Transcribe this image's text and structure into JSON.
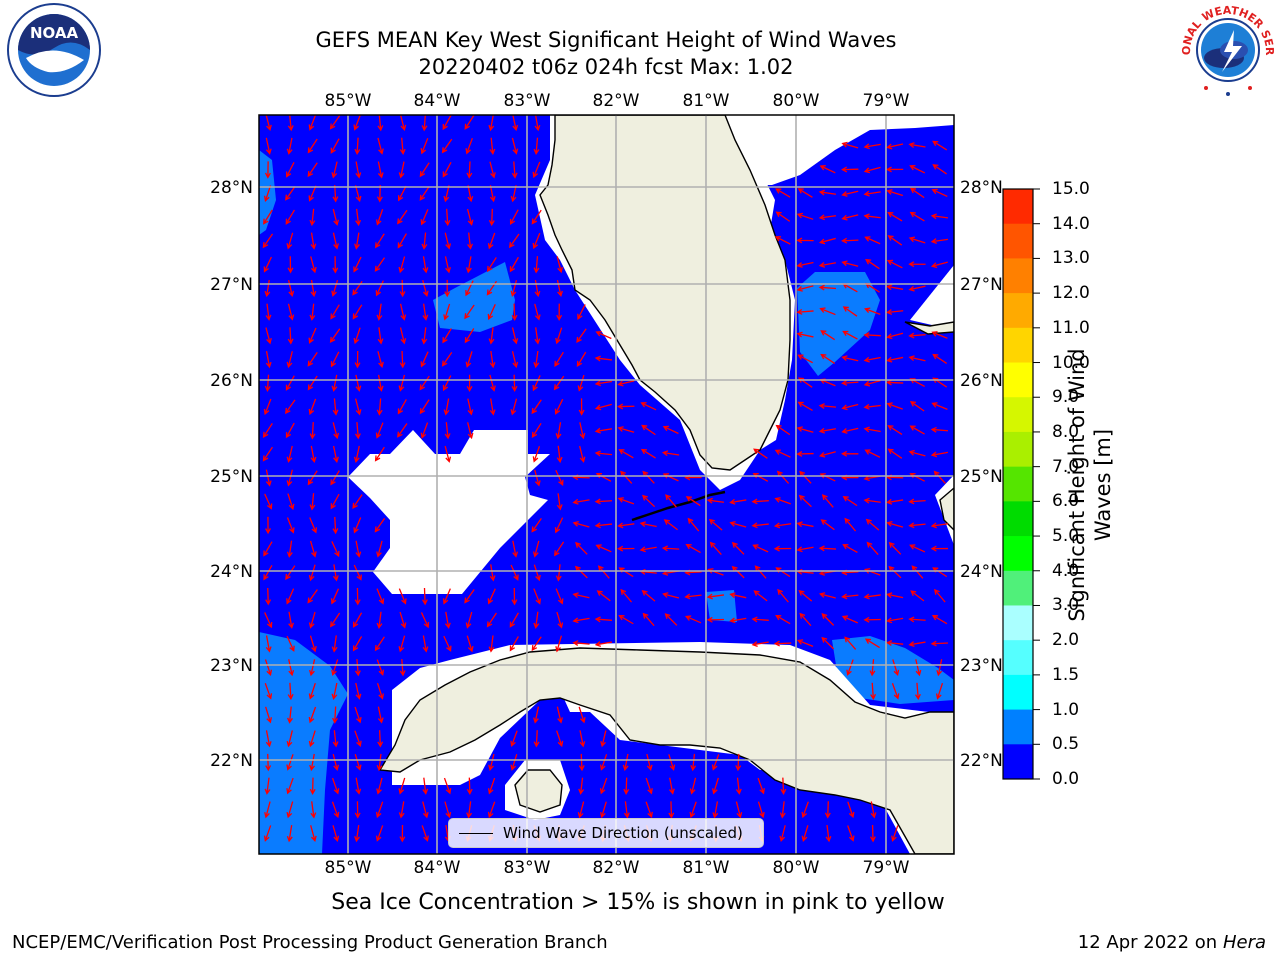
{
  "title": {
    "line1": "GEFS MEAN Key West Significant Height of Wind Waves",
    "line2": "20220402 t06z 024h fcst   Max: 1.02"
  },
  "map": {
    "lon_labels": [
      "85°W",
      "84°W",
      "83°W",
      "82°W",
      "81°W",
      "80°W",
      "79°W"
    ],
    "lat_labels": [
      "28°N",
      "27°N",
      "26°N",
      "25°N",
      "24°N",
      "23°N",
      "22°N"
    ],
    "colors": {
      "ocean_low": "#0000ff",
      "ocean_mid": "#0a7cff",
      "land": "#efefdf",
      "arrow": "#ff0000",
      "grid": "#b0b0b0"
    },
    "legend_label": "Wind Wave Direction (unscaled)"
  },
  "colorbar": {
    "title": "Significant Height of Wind Waves [m]",
    "tick_labels": [
      "15.0",
      "14.0",
      "13.0",
      "12.0",
      "11.0",
      "10.0",
      "9.0",
      "8.0",
      "7.0",
      "6.0",
      "5.0",
      "4.0",
      "3.0",
      "2.0",
      "1.5",
      "1.0",
      "0.5",
      "0.0"
    ],
    "colors": [
      "#ff0000",
      "#ff2a00",
      "#ff5500",
      "#ff8000",
      "#ffaa00",
      "#ffd500",
      "#ffff00",
      "#d5f700",
      "#aaef00",
      "#55e500",
      "#00dc00",
      "#00ff00",
      "#50f07a",
      "#aaffff",
      "#55ffff",
      "#00ffff",
      "#0080ff",
      "#0000ff"
    ]
  },
  "sea_ice_note": "Sea Ice Concentration > 15% is shown in pink to yellow",
  "footer": {
    "left": "NCEP/EMC/Verification Post Processing Product Generation Branch",
    "right_date": "12 Apr 2022 on ",
    "right_host": "Hera"
  },
  "logos": {
    "noaa_text": "NOAA",
    "nws_text": "NATIONAL WEATHER SERVICE"
  }
}
